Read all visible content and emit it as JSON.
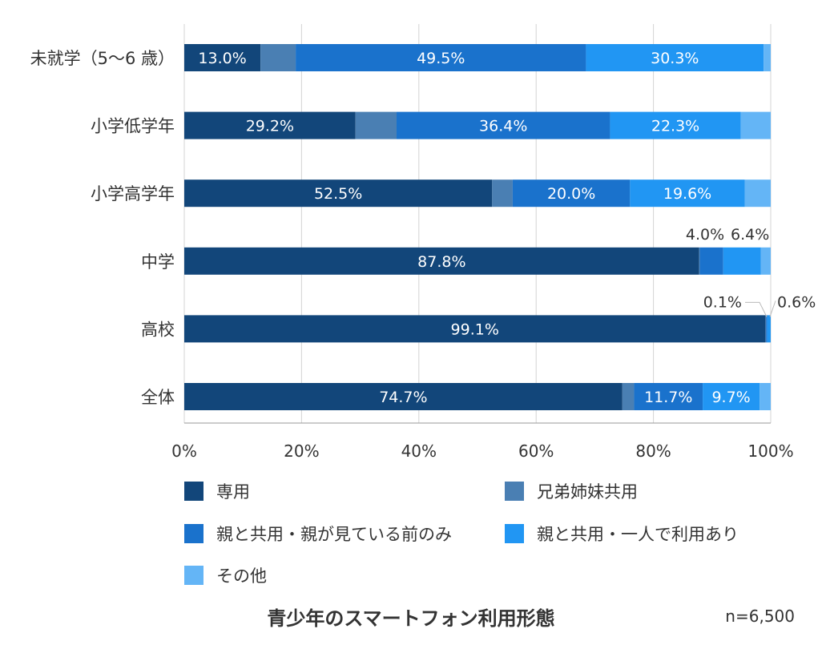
{
  "chart_data": {
    "type": "bar",
    "orientation": "horizontal",
    "stacked": true,
    "title": "青少年のスマートフォン利用形態",
    "sample_size_note": "n=6,500",
    "xlim": [
      0,
      100
    ],
    "x_ticks": [
      "0%",
      "20%",
      "40%",
      "60%",
      "80%",
      "100%"
    ],
    "grid": true,
    "legend_position": "bottom",
    "categories": [
      "未就学（5〜6 歳）",
      "小学低学年",
      "小学高学年",
      "中学",
      "高校",
      "全体"
    ],
    "series": [
      {
        "name": "専用",
        "color": "#12467a",
        "values": [
          13.0,
          29.2,
          52.5,
          87.8,
          99.1,
          74.7
        ],
        "labels": [
          "13.0%",
          "29.2%",
          "52.5%",
          "87.8%",
          "99.1%",
          "74.7%"
        ]
      },
      {
        "name": "兄弟姉妹共用",
        "color": "#4a7fb3",
        "values": [
          6.0,
          7.0,
          3.5,
          0.1,
          0.1,
          2.0
        ],
        "labels": [
          "",
          "",
          "",
          "",
          "0.1%",
          ""
        ]
      },
      {
        "name": "親と共用・親が見ている前のみ",
        "color": "#1a72cc",
        "values": [
          49.5,
          36.4,
          20.0,
          4.0,
          0.2,
          11.7
        ],
        "labels": [
          "49.5%",
          "36.4%",
          "20.0%",
          "4.0%",
          "",
          "11.7%"
        ]
      },
      {
        "name": "親と共用・一人で利用あり",
        "color": "#2196f3",
        "values": [
          30.3,
          22.3,
          19.6,
          6.4,
          0.6,
          9.7
        ],
        "labels": [
          "30.3%",
          "22.3%",
          "19.6%",
          "6.4%",
          "0.6%",
          "9.7%"
        ]
      },
      {
        "name": "その他",
        "color": "#64b5f6",
        "values": [
          1.2,
          5.1,
          4.4,
          1.7,
          0.0,
          1.9
        ],
        "labels": [
          "",
          "",
          "",
          "",
          "",
          ""
        ]
      }
    ]
  }
}
